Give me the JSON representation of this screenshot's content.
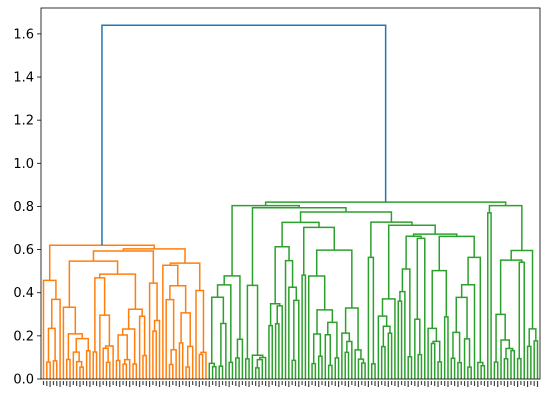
{
  "chart_data": {
    "type": "dendrogram",
    "title": "",
    "xlabel": "",
    "ylabel": "",
    "ylim": [
      0,
      1.72
    ],
    "yticks": [
      0.0,
      0.2,
      0.4,
      0.6,
      0.8,
      1.0,
      1.2,
      1.4,
      1.6
    ],
    "ytick_labels": [
      "0.0",
      "0.2",
      "0.4",
      "0.6",
      "0.8",
      "1.0",
      "1.2",
      "1.4",
      "1.6"
    ],
    "leaf_count": 150,
    "leaf_labels_legible": false,
    "root_height": 1.64,
    "clusters": [
      {
        "color": "#ff7f0e",
        "leaves": [
          0,
          50
        ],
        "height": 0.62
      },
      {
        "color": "#2ca02c",
        "leaves": [
          50,
          150
        ],
        "height": 0.82
      }
    ],
    "above_threshold_color": "#1f77b4",
    "colors": {
      "axis": "#000000",
      "background": "#ffffff"
    }
  }
}
